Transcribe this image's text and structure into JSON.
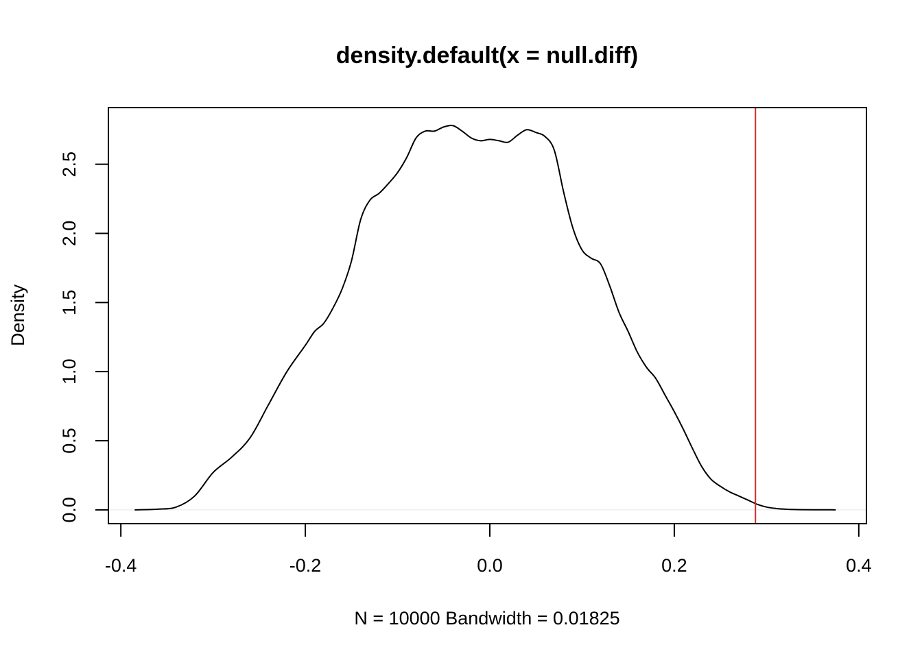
{
  "chart_data": {
    "type": "line",
    "title": "density.default(x = null.diff)",
    "xlabel": "N = 10000   Bandwidth = 0.01825",
    "ylabel": "Density",
    "xlim": [
      -0.4135,
      0.4083
    ],
    "ylim": [
      -0.1,
      2.91
    ],
    "x_ticks": [
      -0.4,
      -0.2,
      0.0,
      0.2,
      0.4
    ],
    "x_tick_labels": [
      "-0.4",
      "-0.2",
      "0.0",
      "0.2",
      "0.4"
    ],
    "y_ticks": [
      0.0,
      0.5,
      1.0,
      1.5,
      2.0,
      2.5
    ],
    "y_tick_labels": [
      "0.0",
      "0.5",
      "1.0",
      "1.5",
      "2.0",
      "2.5"
    ],
    "grid": false,
    "series": [
      {
        "color": "#000000",
        "x": [
          -0.385,
          -0.36,
          -0.34,
          -0.32,
          -0.3,
          -0.28,
          -0.26,
          -0.24,
          -0.22,
          -0.2,
          -0.19,
          -0.18,
          -0.17,
          -0.16,
          -0.15,
          -0.14,
          -0.13,
          -0.12,
          -0.11,
          -0.1,
          -0.09,
          -0.08,
          -0.07,
          -0.06,
          -0.05,
          -0.04,
          -0.03,
          -0.02,
          -0.01,
          0.0,
          0.01,
          0.02,
          0.03,
          0.04,
          0.05,
          0.06,
          0.07,
          0.08,
          0.09,
          0.1,
          0.11,
          0.12,
          0.13,
          0.14,
          0.15,
          0.16,
          0.17,
          0.18,
          0.19,
          0.2,
          0.21,
          0.22,
          0.23,
          0.24,
          0.25,
          0.26,
          0.27,
          0.28,
          0.29,
          0.3,
          0.31,
          0.32,
          0.33,
          0.34,
          0.35,
          0.36,
          0.37,
          0.375
        ],
        "y": [
          0.0,
          0.005,
          0.02,
          0.1,
          0.27,
          0.38,
          0.52,
          0.76,
          1.0,
          1.19,
          1.29,
          1.35,
          1.46,
          1.6,
          1.8,
          2.1,
          2.24,
          2.29,
          2.36,
          2.44,
          2.55,
          2.69,
          2.74,
          2.74,
          2.77,
          2.78,
          2.74,
          2.69,
          2.67,
          2.68,
          2.67,
          2.66,
          2.71,
          2.75,
          2.73,
          2.7,
          2.6,
          2.3,
          2.04,
          1.88,
          1.82,
          1.78,
          1.62,
          1.43,
          1.29,
          1.14,
          1.03,
          0.95,
          0.83,
          0.71,
          0.58,
          0.44,
          0.31,
          0.22,
          0.17,
          0.13,
          0.1,
          0.07,
          0.04,
          0.02,
          0.01,
          0.005,
          0.002,
          0.001,
          0.0005,
          0.0002,
          0.0001,
          0.0
        ]
      }
    ],
    "vline": {
      "x": 0.288,
      "color": "#d62728"
    },
    "hline": {
      "y": 0.0,
      "color": "#e8e8e8"
    }
  }
}
